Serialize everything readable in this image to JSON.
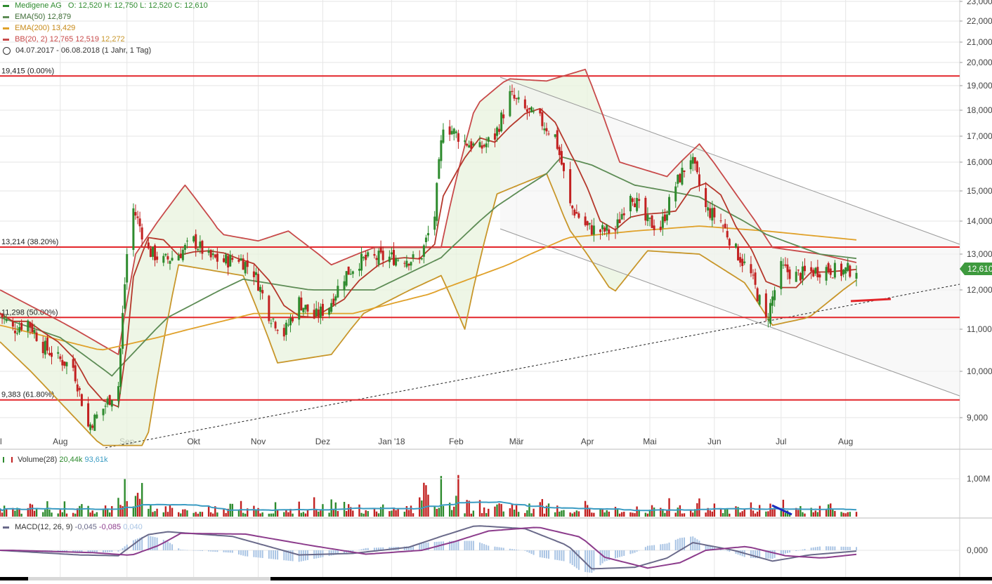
{
  "colors": {
    "up": "#2e8b2e",
    "down": "#c22121",
    "ema50": "#5d8c55",
    "ema200": "#e0a12a",
    "bb": "#c84a4a",
    "bbLower": "#c8962a",
    "bbFill": "#e8f3de",
    "fib": "#e3262b",
    "volumeMA": "#3b9cc3",
    "macd": "#6a6a8a",
    "signal": "#8c3c8c",
    "hist": "#a9c4e4",
    "grid": "#e6e6e6",
    "axis": "#444444",
    "priceTag": "#3e9a3e"
  },
  "legend": {
    "title_label": "Medigene AG",
    "o_label": "O:",
    "o_val": "12,520",
    "h_label": "H:",
    "h_val": "12,750",
    "l_label": "L:",
    "l_val": "12,520",
    "c_label": "C:",
    "c_val": "12,610",
    "ema50_label": "EMA(50)",
    "ema50_val": "12,879",
    "ema200_label": "EMA(200)",
    "ema200_val": "13,429",
    "bb_label": "BB(20, 2)",
    "bb_up": "12,765",
    "bb_mid": "12,519",
    "bb_low": "12,272",
    "range": "04.07.2017 - 06.08.2018",
    "period": "(1 Jahr, 1 Tag)"
  },
  "volume_legend": {
    "label": "Volume(28)",
    "v1": "20,44k",
    "v2": "93,61k"
  },
  "macd_legend": {
    "label": "MACD(12, 26, 9)",
    "v1": "-0,045",
    "v2": "-0,085",
    "v3": "0,040"
  },
  "price_tag": "12,610",
  "chart_data": {
    "type": "line",
    "title": "Medigene AG",
    "date_range": "04.07.2017 - 06.08.2018",
    "ylim": [
      8400,
      23000
    ],
    "y_ticks": [
      9000,
      10000,
      11000,
      12000,
      13000,
      14000,
      15000,
      16000,
      17000,
      18000,
      19000,
      20000,
      21000,
      22000,
      23000
    ],
    "y_tick_labels": [
      "9,000",
      "10,000",
      "11,000",
      "12,000",
      "13,000",
      "14,000",
      "15,000",
      "16,000",
      "17,000",
      "18,000",
      "19,000",
      "20,000",
      "21,000",
      "22,000",
      "23,000"
    ],
    "months": [
      {
        "label": "Aug",
        "date": "2017-08-01"
      },
      {
        "label": "Sep",
        "date": "2017-09-01"
      },
      {
        "label": "Okt",
        "date": "2017-10-02"
      },
      {
        "label": "Nov",
        "date": "2017-11-01"
      },
      {
        "label": "Dez",
        "date": "2017-12-01"
      },
      {
        "label": "Jan '18",
        "date": "2018-01-02"
      },
      {
        "label": "Feb",
        "date": "2018-02-01"
      },
      {
        "label": "Mär",
        "date": "2018-03-01"
      },
      {
        "label": "Apr",
        "date": "2018-04-03"
      },
      {
        "label": "Mai",
        "date": "2018-05-02"
      },
      {
        "label": "Jun",
        "date": "2018-06-01"
      },
      {
        "label": "Jul",
        "date": "2018-07-02"
      },
      {
        "label": "Aug",
        "date": "2018-08-01"
      }
    ],
    "fib_levels": [
      {
        "label": "19,415 (0.00%)",
        "value": 19415
      },
      {
        "label": "13,214 (38.20%)",
        "value": 13214
      },
      {
        "label": "11,298 (50.00%)",
        "value": 11298
      },
      {
        "label": "9,383 (61.80%)",
        "value": 9383
      }
    ],
    "close_series": [
      [
        "2017-07-04",
        11400
      ],
      [
        "2017-07-10",
        11000
      ],
      [
        "2017-07-17",
        11200
      ],
      [
        "2017-07-24",
        10600
      ],
      [
        "2017-07-31",
        10300
      ],
      [
        "2017-08-07",
        10100
      ],
      [
        "2017-08-14",
        8800
      ],
      [
        "2017-08-21",
        9200
      ],
      [
        "2017-08-28",
        9700
      ],
      [
        "2017-09-01",
        13000
      ],
      [
        "2017-09-04",
        14400
      ],
      [
        "2017-09-11",
        13100
      ],
      [
        "2017-09-18",
        12800
      ],
      [
        "2017-09-25",
        13000
      ],
      [
        "2017-10-02",
        13400
      ],
      [
        "2017-10-09",
        12900
      ],
      [
        "2017-10-16",
        12800
      ],
      [
        "2017-10-23",
        12900
      ],
      [
        "2017-10-30",
        12500
      ],
      [
        "2017-11-06",
        11400
      ],
      [
        "2017-11-13",
        10900
      ],
      [
        "2017-11-20",
        11700
      ],
      [
        "2017-11-27",
        11300
      ],
      [
        "2017-12-04",
        11600
      ],
      [
        "2017-12-11",
        12400
      ],
      [
        "2017-12-18",
        12800
      ],
      [
        "2017-12-27",
        12900
      ],
      [
        "2018-01-02",
        12900
      ],
      [
        "2018-01-08",
        12900
      ],
      [
        "2018-01-15",
        12800
      ],
      [
        "2018-01-22",
        14200
      ],
      [
        "2018-01-26",
        17500
      ],
      [
        "2018-02-05",
        16800
      ],
      [
        "2018-02-12",
        16500
      ],
      [
        "2018-02-19",
        17000
      ],
      [
        "2018-02-26",
        18600
      ],
      [
        "2018-03-05",
        18000
      ],
      [
        "2018-03-12",
        17600
      ],
      [
        "2018-03-19",
        17000
      ],
      [
        "2018-03-26",
        14500
      ],
      [
        "2018-04-03",
        13800
      ],
      [
        "2018-04-09",
        13700
      ],
      [
        "2018-04-16",
        13700
      ],
      [
        "2018-04-23",
        15000
      ],
      [
        "2018-04-30",
        14000
      ],
      [
        "2018-05-07",
        13800
      ],
      [
        "2018-05-14",
        15200
      ],
      [
        "2018-05-21",
        16200
      ],
      [
        "2018-05-28",
        14400
      ],
      [
        "2018-06-04",
        14000
      ],
      [
        "2018-06-11",
        13100
      ],
      [
        "2018-06-18",
        12400
      ],
      [
        "2018-06-25",
        11200
      ],
      [
        "2018-07-02",
        12600
      ],
      [
        "2018-07-09",
        12400
      ],
      [
        "2018-07-16",
        12500
      ],
      [
        "2018-07-23",
        12600
      ],
      [
        "2018-07-30",
        12500
      ],
      [
        "2018-08-06",
        12610
      ]
    ],
    "series": [
      {
        "name": "EMA(50)",
        "values": [
          [
            "2017-07-04",
            11300
          ],
          [
            "2017-08-01",
            10800
          ],
          [
            "2017-08-25",
            9900
          ],
          [
            "2017-09-20",
            11300
          ],
          [
            "2017-10-25",
            12300
          ],
          [
            "2017-11-25",
            12000
          ],
          [
            "2017-12-25",
            12000
          ],
          [
            "2018-01-25",
            12900
          ],
          [
            "2018-02-20",
            14500
          ],
          [
            "2018-03-15",
            15600
          ],
          [
            "2018-03-22",
            16200
          ],
          [
            "2018-04-05",
            15900
          ],
          [
            "2018-04-25",
            15200
          ],
          [
            "2018-05-25",
            14800
          ],
          [
            "2018-06-25",
            13600
          ],
          [
            "2018-07-20",
            13000
          ],
          [
            "2018-08-06",
            12879
          ]
        ]
      },
      {
        "name": "EMA(200)",
        "values": [
          [
            "2017-07-04",
            11100
          ],
          [
            "2017-08-20",
            10500
          ],
          [
            "2017-09-15",
            10800
          ],
          [
            "2017-10-30",
            11400
          ],
          [
            "2017-12-15",
            11400
          ],
          [
            "2018-01-20",
            11900
          ],
          [
            "2018-02-25",
            12700
          ],
          [
            "2018-03-25",
            13500
          ],
          [
            "2018-04-25",
            13700
          ],
          [
            "2018-05-25",
            13850
          ],
          [
            "2018-06-25",
            13700
          ],
          [
            "2018-08-06",
            13429
          ]
        ]
      },
      {
        "name": "BB(20, 2)",
        "values": [
          [
            "2017-07-04",
            12000
          ],
          [
            "2017-08-01",
            11200
          ],
          [
            "2017-08-28",
            10400
          ],
          [
            "2017-09-05",
            13000
          ],
          [
            "2017-09-28",
            15200
          ],
          [
            "2017-10-15",
            13600
          ],
          [
            "2017-11-01",
            13400
          ],
          [
            "2017-11-15",
            13700
          ],
          [
            "2017-12-05",
            12700
          ],
          [
            "2017-12-25",
            13200
          ],
          [
            "2018-01-25",
            13200
          ],
          [
            "2018-02-10",
            18200
          ],
          [
            "2018-02-25",
            19300
          ],
          [
            "2018-03-15",
            19200
          ],
          [
            "2018-04-02",
            19700
          ],
          [
            "2018-04-18",
            16000
          ],
          [
            "2018-05-10",
            15500
          ],
          [
            "2018-05-25",
            16700
          ],
          [
            "2018-06-10",
            15000
          ],
          [
            "2018-06-28",
            13200
          ],
          [
            "2018-07-20",
            13000
          ],
          [
            "2018-08-06",
            12765
          ]
        ]
      },
      {
        "name": "BB(20, 2)",
        "values": [
          [
            "2017-07-04",
            10700
          ],
          [
            "2017-08-20",
            8400
          ],
          [
            "2017-09-10",
            8400
          ],
          [
            "2017-09-25",
            12700
          ],
          [
            "2017-10-25",
            12400
          ],
          [
            "2017-11-10",
            10200
          ],
          [
            "2017-12-05",
            10400
          ],
          [
            "2017-12-20",
            11400
          ],
          [
            "2018-01-25",
            12400
          ],
          [
            "2018-02-05",
            11000
          ],
          [
            "2018-02-20",
            14900
          ],
          [
            "2018-03-15",
            15600
          ],
          [
            "2018-03-25",
            13800
          ],
          [
            "2018-04-15",
            11900
          ],
          [
            "2018-05-01",
            13100
          ],
          [
            "2018-05-25",
            13000
          ],
          [
            "2018-06-15",
            12200
          ],
          [
            "2018-06-28",
            11100
          ],
          [
            "2018-07-15",
            11300
          ],
          [
            "2018-08-06",
            12272
          ]
        ]
      }
    ],
    "volume": {
      "label": "Volume(28)",
      "ticks": [
        "1,00M"
      ]
    },
    "macd": {
      "label": "MACD(12, 26, 9)",
      "ticks": [
        "0,000"
      ]
    }
  }
}
